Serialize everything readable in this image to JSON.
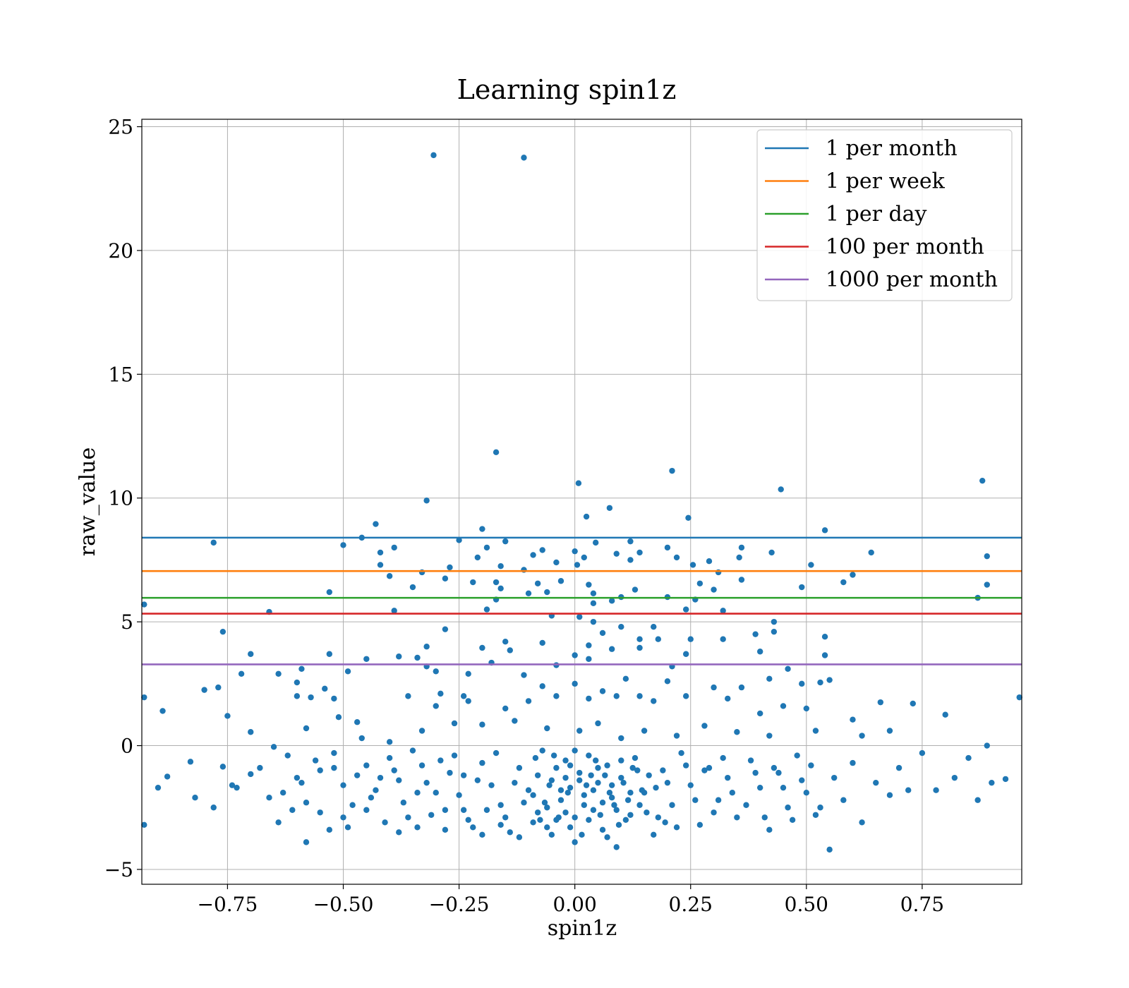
{
  "chart_data": {
    "type": "scatter",
    "title": "Learning spin1z",
    "xlabel": "spin1z",
    "ylabel": "raw_value",
    "xlim": [
      -0.935,
      0.965
    ],
    "ylim": [
      -5.6,
      25.3
    ],
    "xticks": [
      -0.75,
      -0.5,
      -0.25,
      0.0,
      0.25,
      0.5,
      0.75
    ],
    "xtick_labels": [
      "−0.75",
      "−0.50",
      "−0.25",
      "0.00",
      "0.25",
      "0.50",
      "0.75"
    ],
    "yticks": [
      -5,
      0,
      5,
      10,
      15,
      20,
      25
    ],
    "ytick_labels": [
      "−5",
      "0",
      "5",
      "10",
      "15",
      "20",
      "25"
    ],
    "grid": true,
    "legend_position": "top-right",
    "scatter_color": "#1f77b4",
    "hlines": [
      {
        "name": "1 per month",
        "y": 8.4,
        "color": "#1f77b4"
      },
      {
        "name": "1 per week",
        "y": 7.05,
        "color": "#ff7f0e"
      },
      {
        "name": "1 per day",
        "y": 5.97,
        "color": "#2ca02c"
      },
      {
        "name": "100 per month",
        "y": 5.33,
        "color": "#d62728"
      },
      {
        "name": "1000 per month",
        "y": 3.28,
        "color": "#9467bd"
      }
    ],
    "points": [
      [
        -0.305,
        23.85
      ],
      [
        -0.11,
        23.75
      ],
      [
        -0.17,
        11.85
      ],
      [
        0.21,
        11.1
      ],
      [
        0.008,
        10.6
      ],
      [
        0.445,
        10.35
      ],
      [
        0.88,
        10.7
      ],
      [
        -0.32,
        9.9
      ],
      [
        0.075,
        9.6
      ],
      [
        0.025,
        9.25
      ],
      [
        0.245,
        9.2
      ],
      [
        -0.43,
        8.95
      ],
      [
        -0.2,
        8.75
      ],
      [
        0.54,
        8.7
      ],
      [
        -0.78,
        8.2
      ],
      [
        -0.5,
        8.1
      ],
      [
        -0.46,
        8.4
      ],
      [
        -0.25,
        8.3
      ],
      [
        -0.15,
        8.25
      ],
      [
        0.045,
        8.2
      ],
      [
        0.12,
        8.25
      ],
      [
        -0.39,
        8.0
      ],
      [
        -0.19,
        8.0
      ],
      [
        0.36,
        8.0
      ],
      [
        -0.07,
        7.9
      ],
      [
        0.0,
        7.85
      ],
      [
        0.2,
        8.0
      ],
      [
        -0.42,
        7.8
      ],
      [
        0.09,
        7.75
      ],
      [
        0.14,
        7.8
      ],
      [
        0.425,
        7.8
      ],
      [
        0.64,
        7.8
      ],
      [
        0.89,
        7.65
      ],
      [
        -0.21,
        7.6
      ],
      [
        -0.09,
        7.7
      ],
      [
        0.02,
        7.6
      ],
      [
        0.22,
        7.6
      ],
      [
        0.355,
        7.6
      ],
      [
        -0.42,
        7.3
      ],
      [
        -0.27,
        7.2
      ],
      [
        -0.16,
        7.25
      ],
      [
        -0.04,
        7.4
      ],
      [
        0.005,
        7.3
      ],
      [
        0.12,
        7.5
      ],
      [
        0.255,
        7.3
      ],
      [
        0.29,
        7.45
      ],
      [
        0.51,
        7.3
      ],
      [
        -0.33,
        7.0
      ],
      [
        -0.11,
        7.1
      ],
      [
        0.31,
        7.0
      ],
      [
        0.6,
        6.9
      ],
      [
        -0.4,
        6.85
      ],
      [
        -0.28,
        6.75
      ],
      [
        -0.17,
        6.6
      ],
      [
        -0.08,
        6.55
      ],
      [
        -0.03,
        6.65
      ],
      [
        0.03,
        6.5
      ],
      [
        0.27,
        6.55
      ],
      [
        0.36,
        6.7
      ],
      [
        0.58,
        6.6
      ],
      [
        -0.35,
        6.4
      ],
      [
        -0.22,
        6.6
      ],
      [
        -0.16,
        6.35
      ],
      [
        0.13,
        6.3
      ],
      [
        0.49,
        6.4
      ],
      [
        0.89,
        6.5
      ],
      [
        -0.53,
        6.2
      ],
      [
        -0.1,
        6.15
      ],
      [
        -0.06,
        6.2
      ],
      [
        0.04,
        6.15
      ],
      [
        0.1,
        6.0
      ],
      [
        0.2,
        6.0
      ],
      [
        0.3,
        6.3
      ],
      [
        0.87,
        5.97
      ],
      [
        -0.93,
        5.7
      ],
      [
        -0.17,
        5.9
      ],
      [
        0.08,
        5.85
      ],
      [
        0.26,
        5.9
      ],
      [
        -0.39,
        5.45
      ],
      [
        -0.19,
        5.5
      ],
      [
        0.04,
        5.75
      ],
      [
        0.24,
        5.5
      ],
      [
        0.32,
        5.45
      ],
      [
        -0.66,
        5.4
      ],
      [
        -0.05,
        5.25
      ],
      [
        0.01,
        5.2
      ],
      [
        0.04,
        5.0
      ],
      [
        0.1,
        4.8
      ],
      [
        0.17,
        4.8
      ],
      [
        0.43,
        5.0
      ],
      [
        -0.28,
        4.7
      ],
      [
        0.06,
        4.55
      ],
      [
        0.25,
        4.3
      ],
      [
        0.39,
        4.5
      ],
      [
        0.43,
        4.6
      ],
      [
        0.54,
        4.4
      ],
      [
        -0.76,
        4.6
      ],
      [
        -0.15,
        4.2
      ],
      [
        -0.07,
        4.15
      ],
      [
        0.14,
        4.3
      ],
      [
        0.18,
        4.3
      ],
      [
        0.32,
        4.3
      ],
      [
        -0.32,
        4.0
      ],
      [
        -0.2,
        3.95
      ],
      [
        -0.14,
        3.85
      ],
      [
        0.03,
        4.05
      ],
      [
        0.08,
        3.9
      ],
      [
        0.14,
        3.95
      ],
      [
        0.4,
        3.8
      ],
      [
        -0.53,
        3.7
      ],
      [
        -0.7,
        3.7
      ],
      [
        -0.38,
        3.6
      ],
      [
        -0.34,
        3.55
      ],
      [
        -0.45,
        3.5
      ],
      [
        0.0,
        3.65
      ],
      [
        0.24,
        3.7
      ],
      [
        0.54,
        3.65
      ],
      [
        -0.32,
        3.2
      ],
      [
        -0.18,
        3.35
      ],
      [
        -0.04,
        3.25
      ],
      [
        0.03,
        3.5
      ],
      [
        0.21,
        3.2
      ],
      [
        0.46,
        3.1
      ],
      [
        -0.59,
        3.1
      ],
      [
        -0.49,
        3.0
      ],
      [
        -0.3,
        3.0
      ],
      [
        -0.23,
        2.9
      ],
      [
        -0.11,
        2.85
      ],
      [
        -0.72,
        2.9
      ],
      [
        -0.64,
        2.9
      ],
      [
        0.42,
        2.7
      ],
      [
        0.49,
        2.5
      ],
      [
        0.55,
        2.65
      ],
      [
        0.53,
        2.55
      ],
      [
        0.66,
        1.75
      ],
      [
        -0.93,
        1.95
      ],
      [
        -0.89,
        1.4
      ],
      [
        -0.8,
        2.25
      ],
      [
        -0.77,
        2.35
      ],
      [
        -0.75,
        1.2
      ],
      [
        -0.6,
        2.55
      ],
      [
        -0.6,
        2.0
      ],
      [
        -0.57,
        1.95
      ],
      [
        -0.52,
        1.9
      ],
      [
        -0.54,
        2.3
      ],
      [
        -0.51,
        1.15
      ],
      [
        -0.47,
        0.95
      ],
      [
        -0.36,
        2.0
      ],
      [
        -0.3,
        1.6
      ],
      [
        -0.29,
        2.1
      ],
      [
        -0.23,
        1.8
      ],
      [
        -0.24,
        2.0
      ],
      [
        -0.15,
        1.5
      ],
      [
        -0.1,
        1.8
      ],
      [
        -0.07,
        2.4
      ],
      [
        -0.04,
        2.0
      ],
      [
        0.0,
        2.5
      ],
      [
        0.03,
        1.9
      ],
      [
        0.06,
        2.2
      ],
      [
        0.09,
        2.0
      ],
      [
        0.11,
        2.7
      ],
      [
        0.14,
        2.0
      ],
      [
        0.17,
        1.8
      ],
      [
        0.2,
        2.6
      ],
      [
        0.24,
        2.0
      ],
      [
        0.3,
        2.35
      ],
      [
        0.33,
        1.9
      ],
      [
        0.36,
        2.35
      ],
      [
        0.96,
        1.95
      ],
      [
        0.73,
        1.7
      ],
      [
        0.8,
        1.25
      ],
      [
        0.6,
        1.05
      ],
      [
        0.5,
        1.5
      ],
      [
        0.45,
        1.6
      ],
      [
        0.4,
        1.3
      ],
      [
        -0.7,
        0.55
      ],
      [
        -0.58,
        0.7
      ],
      [
        -0.46,
        0.3
      ],
      [
        -0.4,
        0.15
      ],
      [
        -0.33,
        0.6
      ],
      [
        -0.26,
        0.9
      ],
      [
        -0.2,
        0.85
      ],
      [
        -0.13,
        1.0
      ],
      [
        -0.06,
        0.7
      ],
      [
        0.01,
        0.6
      ],
      [
        0.05,
        0.9
      ],
      [
        0.1,
        0.3
      ],
      [
        0.15,
        0.6
      ],
      [
        0.22,
        0.4
      ],
      [
        0.28,
        0.8
      ],
      [
        0.35,
        0.55
      ],
      [
        0.42,
        0.4
      ],
      [
        0.52,
        0.6
      ],
      [
        0.62,
        0.4
      ],
      [
        0.68,
        0.6
      ],
      [
        0.89,
        0.0
      ],
      [
        -0.93,
        -3.2
      ],
      [
        -0.88,
        -1.25
      ],
      [
        -0.9,
        -1.7
      ],
      [
        -0.83,
        -0.65
      ],
      [
        -0.82,
        -2.1
      ],
      [
        -0.78,
        -2.5
      ],
      [
        -0.76,
        -0.85
      ],
      [
        -0.73,
        -1.7
      ],
      [
        -0.7,
        -1.15
      ],
      [
        -0.65,
        -0.05
      ],
      [
        -0.62,
        -0.4
      ],
      [
        -0.6,
        -1.3
      ],
      [
        -0.58,
        -2.3
      ],
      [
        -0.58,
        -3.9
      ],
      [
        -0.55,
        -1.0
      ],
      [
        -0.52,
        -0.3
      ],
      [
        -0.5,
        -1.6
      ],
      [
        -0.48,
        -2.4
      ],
      [
        -0.45,
        -0.8
      ],
      [
        -0.43,
        -1.8
      ],
      [
        -0.4,
        -0.5
      ],
      [
        -0.38,
        -1.4
      ],
      [
        -0.36,
        -2.9
      ],
      [
        -0.33,
        -0.8
      ],
      [
        -0.3,
        -1.9
      ],
      [
        -0.28,
        -2.6
      ],
      [
        -0.26,
        -0.4
      ],
      [
        -0.24,
        -1.2
      ],
      [
        -0.22,
        -3.3
      ],
      [
        -0.2,
        -0.7
      ],
      [
        -0.18,
        -1.6
      ],
      [
        -0.16,
        -2.4
      ],
      [
        -0.14,
        -3.5
      ],
      [
        -0.12,
        -0.9
      ],
      [
        -0.1,
        -1.8
      ],
      [
        -0.08,
        -2.7
      ],
      [
        -0.07,
        -0.2
      ],
      [
        -0.05,
        -1.4
      ],
      [
        -0.04,
        -3.0
      ],
      [
        -0.03,
        -2.2
      ],
      [
        -0.02,
        -0.6
      ],
      [
        -0.01,
        -1.7
      ],
      [
        0.0,
        -2.9
      ],
      [
        0.0,
        -3.9
      ],
      [
        0.01,
        -1.1
      ],
      [
        0.02,
        -2.0
      ],
      [
        0.03,
        -0.4
      ],
      [
        0.04,
        -2.6
      ],
      [
        0.05,
        -1.5
      ],
      [
        0.06,
        -3.4
      ],
      [
        0.07,
        -0.8
      ],
      [
        0.08,
        -2.1
      ],
      [
        0.09,
        -4.1
      ],
      [
        0.1,
        -1.3
      ],
      [
        0.12,
        -2.8
      ],
      [
        0.13,
        -0.5
      ],
      [
        0.15,
        -1.9
      ],
      [
        0.17,
        -3.6
      ],
      [
        0.19,
        -1.0
      ],
      [
        0.21,
        -2.4
      ],
      [
        0.23,
        -0.3
      ],
      [
        0.25,
        -1.6
      ],
      [
        0.27,
        -3.2
      ],
      [
        0.29,
        -0.9
      ],
      [
        0.31,
        -2.2
      ],
      [
        0.33,
        -1.3
      ],
      [
        0.35,
        -2.9
      ],
      [
        0.38,
        -0.6
      ],
      [
        0.4,
        -1.7
      ],
      [
        0.42,
        -3.4
      ],
      [
        0.44,
        -1.1
      ],
      [
        0.46,
        -2.5
      ],
      [
        0.48,
        -0.4
      ],
      [
        0.5,
        -1.9
      ],
      [
        0.52,
        -2.8
      ],
      [
        0.55,
        -4.2
      ],
      [
        0.56,
        -1.3
      ],
      [
        0.58,
        -2.2
      ],
      [
        0.6,
        -0.7
      ],
      [
        0.62,
        -3.1
      ],
      [
        0.65,
        -1.5
      ],
      [
        0.68,
        -2.0
      ],
      [
        0.7,
        -0.9
      ],
      [
        0.72,
        -1.8
      ],
      [
        0.75,
        -0.3
      ],
      [
        0.78,
        -1.8
      ],
      [
        0.82,
        -1.3
      ],
      [
        0.85,
        -0.5
      ],
      [
        0.87,
        -2.2
      ],
      [
        0.9,
        -1.5
      ],
      [
        0.93,
        -1.35
      ],
      [
        -0.63,
        -1.9
      ],
      [
        -0.61,
        -2.6
      ],
      [
        -0.56,
        -0.6
      ],
      [
        -0.53,
        -3.4
      ],
      [
        -0.5,
        -2.9
      ],
      [
        -0.47,
        -1.2
      ],
      [
        -0.44,
        -2.1
      ],
      [
        -0.41,
        -3.1
      ],
      [
        -0.39,
        -1.0
      ],
      [
        -0.37,
        -2.3
      ],
      [
        -0.35,
        -0.2
      ],
      [
        -0.34,
        -3.3
      ],
      [
        -0.32,
        -1.5
      ],
      [
        -0.31,
        -2.8
      ],
      [
        -0.29,
        -0.6
      ],
      [
        -0.27,
        -1.1
      ],
      [
        -0.25,
        -2.0
      ],
      [
        -0.23,
        -3.0
      ],
      [
        -0.21,
        -1.4
      ],
      [
        -0.19,
        -2.6
      ],
      [
        -0.17,
        -0.3
      ],
      [
        -0.15,
        -2.9
      ],
      [
        -0.13,
        -1.5
      ],
      [
        -0.11,
        -2.3
      ],
      [
        -0.09,
        -3.1
      ],
      [
        -0.08,
        -1.2
      ],
      [
        -0.06,
        -2.5
      ],
      [
        -0.05,
        -3.6
      ],
      [
        -0.04,
        -0.9
      ],
      [
        -0.03,
        -1.8
      ],
      [
        -0.02,
        -2.7
      ],
      [
        -0.01,
        -3.3
      ],
      [
        0.0,
        -0.2
      ],
      [
        0.01,
        -1.4
      ],
      [
        0.02,
        -2.4
      ],
      [
        0.03,
        -3.0
      ],
      [
        0.04,
        -1.8
      ],
      [
        0.05,
        -0.9
      ],
      [
        0.06,
        -2.3
      ],
      [
        0.07,
        -3.7
      ],
      [
        0.08,
        -1.6
      ],
      [
        0.09,
        -2.6
      ],
      [
        0.1,
        -0.6
      ],
      [
        0.11,
        -3.0
      ],
      [
        0.12,
        -1.9
      ],
      [
        0.14,
        -2.4
      ],
      [
        0.16,
        -1.2
      ],
      [
        0.18,
        -2.9
      ],
      [
        0.2,
        -1.5
      ],
      [
        0.22,
        -3.3
      ],
      [
        0.24,
        -0.8
      ],
      [
        0.26,
        -2.2
      ],
      [
        0.28,
        -1.0
      ],
      [
        0.3,
        -2.7
      ],
      [
        0.32,
        -0.5
      ],
      [
        0.34,
        -1.9
      ],
      [
        0.37,
        -2.4
      ],
      [
        0.39,
        -1.1
      ],
      [
        0.41,
        -2.9
      ],
      [
        0.43,
        -0.9
      ],
      [
        0.45,
        -1.7
      ],
      [
        0.47,
        -3.0
      ],
      [
        0.49,
        -1.4
      ],
      [
        0.51,
        -0.8
      ],
      [
        0.53,
        -2.5
      ],
      [
        -0.74,
        -1.6
      ],
      [
        -0.68,
        -0.9
      ],
      [
        -0.66,
        -2.1
      ],
      [
        -0.64,
        -3.1
      ],
      [
        -0.59,
        -1.5
      ],
      [
        -0.55,
        -2.7
      ],
      [
        -0.52,
        -0.9
      ],
      [
        -0.49,
        -3.3
      ],
      [
        -0.45,
        -2.6
      ],
      [
        -0.42,
        -1.3
      ],
      [
        -0.38,
        -3.5
      ],
      [
        -0.34,
        -1.9
      ],
      [
        -0.28,
        -3.4
      ],
      [
        -0.24,
        -2.6
      ],
      [
        -0.2,
        -3.6
      ],
      [
        -0.16,
        -3.2
      ],
      [
        -0.12,
        -3.7
      ],
      [
        -0.09,
        -2.0
      ],
      [
        -0.06,
        -3.3
      ],
      [
        -0.02,
        -1.3
      ],
      [
        0.015,
        -3.6
      ],
      [
        0.035,
        -1.2
      ],
      [
        0.055,
        -2.8
      ],
      [
        0.075,
        -1.9
      ],
      [
        0.095,
        -3.2
      ],
      [
        0.115,
        -2.2
      ],
      [
        0.135,
        -1.0
      ],
      [
        0.155,
        -2.7
      ],
      [
        0.175,
        -1.7
      ],
      [
        0.195,
        -3.1
      ],
      [
        -0.01,
        -0.8
      ],
      [
        -0.015,
        -1.9
      ],
      [
        0.025,
        -1.6
      ],
      [
        0.045,
        -0.6
      ],
      [
        -0.035,
        -2.9
      ],
      [
        0.065,
        -1.2
      ],
      [
        -0.045,
        -0.4
      ],
      [
        0.085,
        -2.4
      ],
      [
        -0.055,
        -1.6
      ],
      [
        0.105,
        -1.5
      ],
      [
        -0.065,
        -2.3
      ],
      [
        0.125,
        -0.9
      ],
      [
        -0.075,
        -3.0
      ],
      [
        0.145,
        -1.8
      ],
      [
        -0.085,
        -0.5
      ]
    ]
  }
}
